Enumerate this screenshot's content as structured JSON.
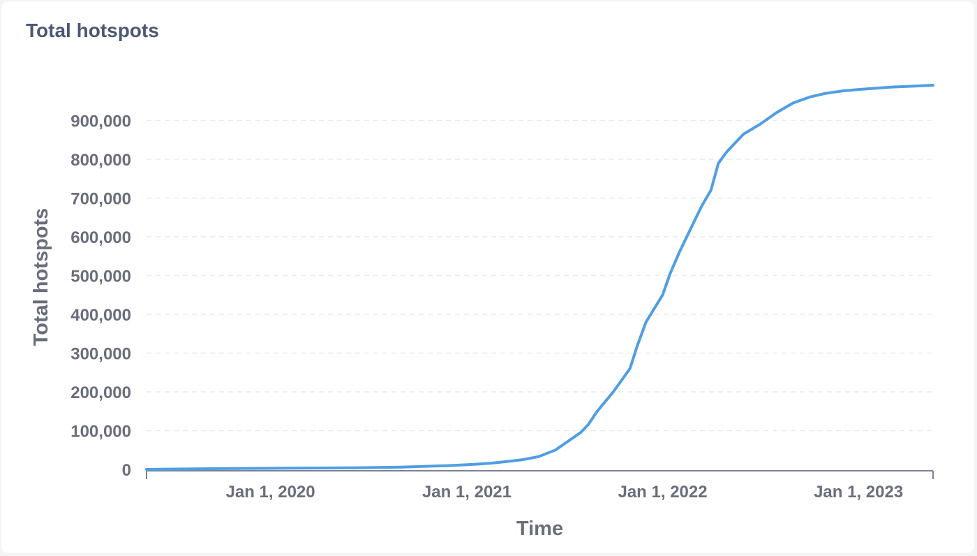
{
  "card": {
    "title": "Total hotspots"
  },
  "colors": {
    "line": "#509ee3",
    "axis": "#7b8195",
    "grid": "#e8eaed",
    "text": "#696e7b",
    "title": "#4c5773"
  },
  "chart_data": {
    "type": "line",
    "title": "Total hotspots",
    "xlabel": "Time",
    "ylabel": "Total hotspots",
    "x_type": "date",
    "xlim": [
      "2019-05-15",
      "2023-05-20"
    ],
    "ylim": [
      0,
      1000000
    ],
    "grid": true,
    "legend": "none",
    "yticks": [
      {
        "value": 0,
        "label": "0"
      },
      {
        "value": 100000,
        "label": "100,000"
      },
      {
        "value": 200000,
        "label": "200,000"
      },
      {
        "value": 300000,
        "label": "300,000"
      },
      {
        "value": 400000,
        "label": "400,000"
      },
      {
        "value": 500000,
        "label": "500,000"
      },
      {
        "value": 600000,
        "label": "600,000"
      },
      {
        "value": 700000,
        "label": "700,000"
      },
      {
        "value": 800000,
        "label": "800,000"
      },
      {
        "value": 900000,
        "label": "900,000"
      }
    ],
    "xticks": [
      {
        "value": "2020-01-01",
        "label": "Jan 1, 2020"
      },
      {
        "value": "2021-01-01",
        "label": "Jan 1, 2021"
      },
      {
        "value": "2022-01-01",
        "label": "Jan 1, 2022"
      },
      {
        "value": "2023-01-01",
        "label": "Jan 1, 2023"
      }
    ],
    "series": [
      {
        "x": [
          "2019-05-15",
          "2019-10-01",
          "2020-02-01",
          "2020-06-01",
          "2020-09-01",
          "2020-12-01",
          "2021-01-15",
          "2021-02-15",
          "2021-03-15",
          "2021-04-15",
          "2021-05-15",
          "2021-06-15",
          "2021-07-01",
          "2021-08-01",
          "2021-08-15",
          "2021-09-01",
          "2021-10-01",
          "2021-11-01",
          "2021-11-15",
          "2021-12-01",
          "2022-01-01",
          "2022-01-15",
          "2022-02-01",
          "2022-03-01",
          "2022-03-15",
          "2022-04-01",
          "2022-04-15",
          "2022-05-01",
          "2022-06-01",
          "2022-07-01",
          "2022-08-01",
          "2022-09-01",
          "2022-10-01",
          "2022-11-01",
          "2022-12-01",
          "2023-01-01",
          "2023-02-01",
          "2023-03-01",
          "2023-04-01",
          "2023-05-20"
        ],
        "y": [
          0,
          2000,
          3000,
          4000,
          6000,
          10000,
          13000,
          16000,
          20000,
          25000,
          33000,
          50000,
          65000,
          95000,
          115000,
          150000,
          200000,
          260000,
          320000,
          380000,
          450000,
          505000,
          560000,
          640000,
          680000,
          720000,
          790000,
          820000,
          865000,
          890000,
          920000,
          945000,
          960000,
          970000,
          976000,
          980000,
          983000,
          986000,
          988000,
          991000
        ]
      }
    ]
  }
}
